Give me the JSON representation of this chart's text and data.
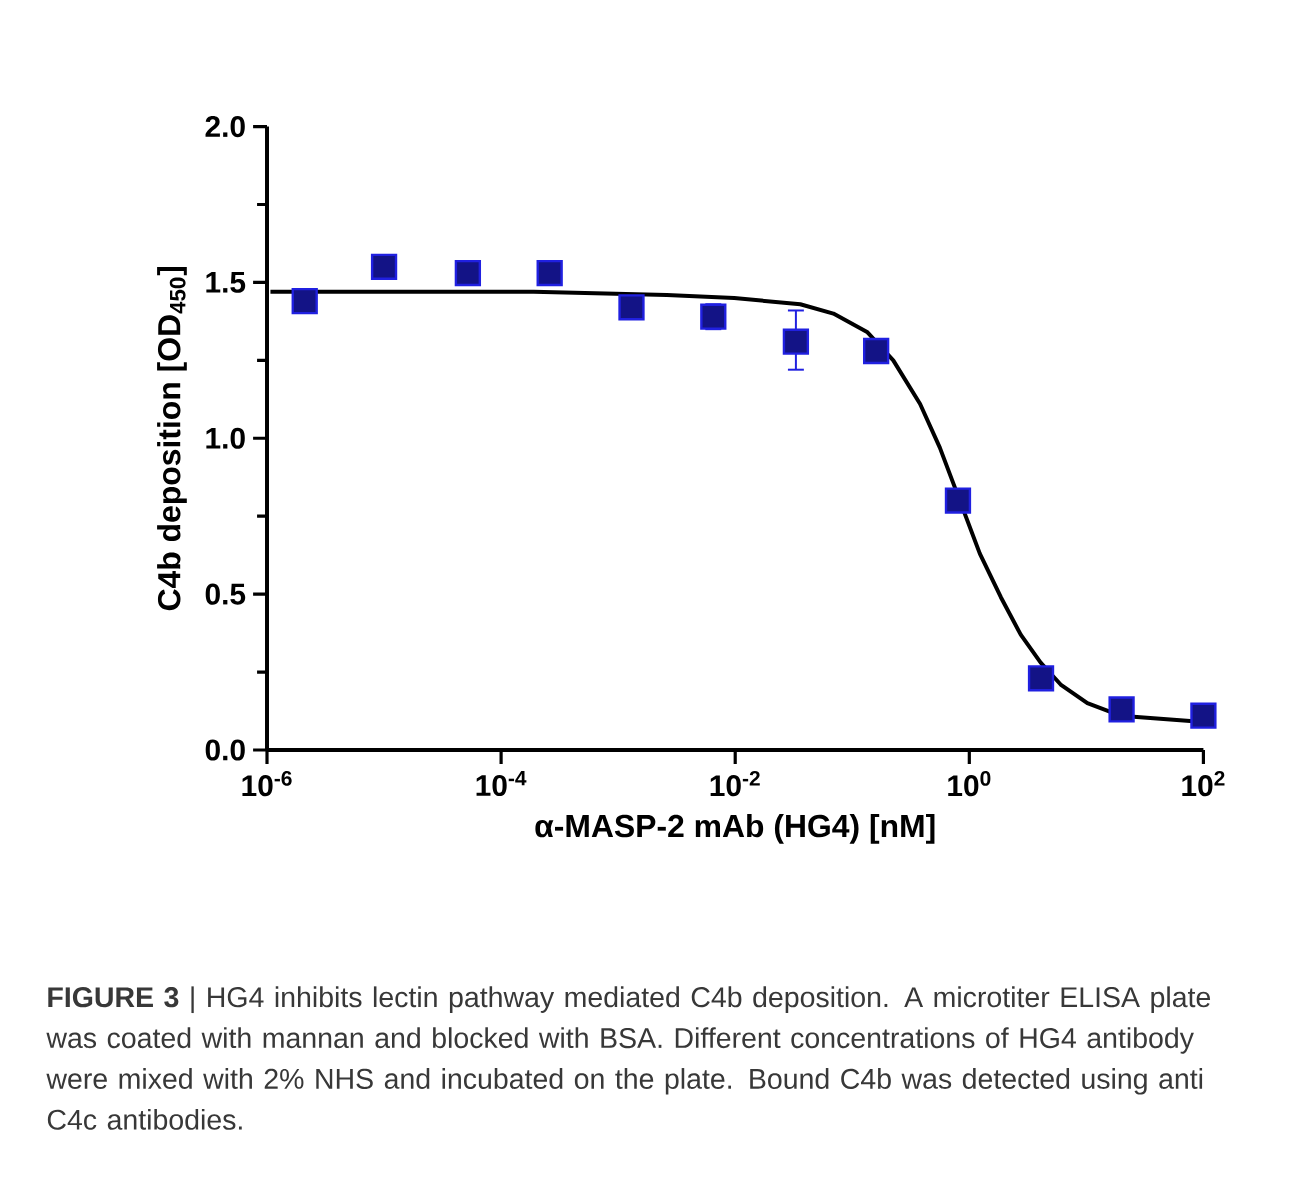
{
  "chart_data": {
    "type": "scatter",
    "xlabel": "α-MASP-2 mAb (HG4)  [nM]",
    "ylabel": "C4b deposition [OD$_{450}$]",
    "log": "x",
    "xlim": [
      1e-06,
      100
    ],
    "ylim": [
      0,
      2
    ],
    "xticks": [
      {
        "value": 1e-06,
        "label": "10$^{-6}$"
      },
      {
        "value": 0.0001,
        "label": "10$^{-4}$"
      },
      {
        "value": 0.01,
        "label": "10$^{-2}$"
      },
      {
        "value": 1,
        "label": "10$^{0}$"
      },
      {
        "value": 100,
        "label": "10$^{2}$"
      }
    ],
    "yticks": [
      {
        "value": 0,
        "label": "0.0"
      },
      {
        "value": 0.5,
        "label": "0.5"
      },
      {
        "value": 1,
        "label": "1.0"
      },
      {
        "value": 1.5,
        "label": "1.5"
      },
      {
        "value": 2,
        "label": "2.0"
      }
    ],
    "annotations": [
      "**FIGURE 3** | HG4 inhibits lectin pathway mediated C4b deposition. A microtiter ELISA plate was coated with mannan and blocked with BSA. Different concentrations of HG4 antibody were mixed with 2% NHS and incubated on the plate. Bound C4b was detected using anti C4c antibodies."
    ],
    "series": [
      {
        "color": "#2020e0",
        "marker": "square",
        "x": [
          2.1e-06,
          1e-05,
          5.2e-05,
          0.00026,
          0.0013,
          0.0065,
          0.033,
          0.16,
          0.8,
          4.1,
          20,
          100
        ],
        "values": [
          1.44,
          1.55,
          1.53,
          1.53,
          1.42,
          1.39,
          1.31,
          1.28,
          0.8,
          0.23,
          0.13,
          0.11
        ],
        "errors": [
          null,
          null,
          null,
          null,
          null,
          [
            1.35,
            1.43
          ],
          [
            1.22,
            1.41
          ],
          null,
          null,
          null,
          null,
          null
        ]
      },
      {
        "type": "line",
        "color": "#000000",
        "marker": "none",
        "line_style": "solid",
        "x": [
          1.07e-06,
          0.00019,
          0.0026,
          0.0098,
          0.036,
          0.069,
          0.135,
          0.224,
          0.38,
          0.56,
          0.83,
          1.23,
          1.86,
          2.75,
          4.07,
          6.03,
          10.2,
          19.5,
          42.7,
          100
        ],
        "values": [
          1.47,
          1.47,
          1.46,
          1.45,
          1.43,
          1.4,
          1.34,
          1.25,
          1.11,
          0.97,
          0.8,
          0.63,
          0.49,
          0.37,
          0.28,
          0.21,
          0.15,
          0.11,
          0.1,
          0.09
        ]
      }
    ]
  }
}
